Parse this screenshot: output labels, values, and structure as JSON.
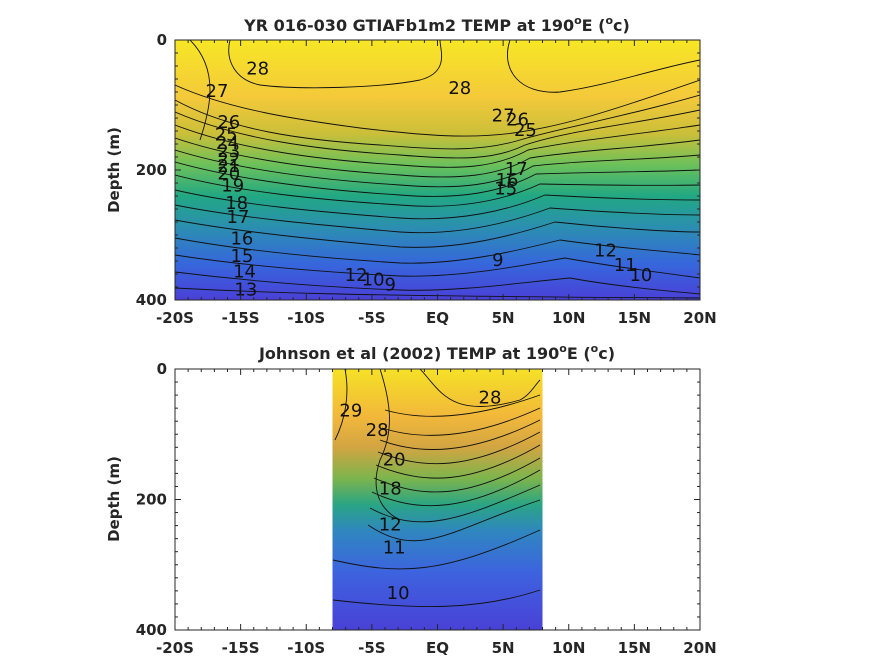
{
  "chart_data": [
    {
      "type": "heatmap",
      "title": "YR 016-030 GTIAFb1m2 TEMP at 190",
      "title_sup": "o",
      "title_mid": "E (",
      "title_sup2": "o",
      "title_end": "c)",
      "ylabel": "Depth (m)",
      "xlabel": "",
      "x_ticks": [
        "-20S",
        "-15S",
        "-10S",
        "-5S",
        "EQ",
        "5N",
        "10N",
        "15N",
        "20N"
      ],
      "x_values": [
        -20,
        -15,
        -10,
        -5,
        0,
        5,
        10,
        15,
        20
      ],
      "y_ticks": [
        "0",
        "200",
        "400"
      ],
      "y_values": [
        0,
        200,
        400
      ],
      "xlim": [
        -20,
        20
      ],
      "ylim": [
        400,
        0
      ],
      "data_extent": [
        -20,
        20
      ],
      "colormap": [
        "#f4e826",
        "#f8c23a",
        "#e9b33c",
        "#a9c23e",
        "#3fbc73",
        "#1fa187",
        "#2a7fb8",
        "#3a5fe0",
        "#4a3fd8"
      ],
      "contour_labels": [
        {
          "text": "28",
          "x": -13.7,
          "y": 45
        },
        {
          "text": "27",
          "x": -16.8,
          "y": 80
        },
        {
          "text": "26",
          "x": -15.9,
          "y": 128
        },
        {
          "text": "25",
          "x": -16.1,
          "y": 147
        },
        {
          "text": "24",
          "x": -16.0,
          "y": 160
        },
        {
          "text": "23",
          "x": -15.9,
          "y": 172
        },
        {
          "text": "22",
          "x": -15.9,
          "y": 185
        },
        {
          "text": "21",
          "x": -15.9,
          "y": 195
        },
        {
          "text": "20",
          "x": -15.9,
          "y": 207
        },
        {
          "text": "19",
          "x": -15.6,
          "y": 225
        },
        {
          "text": "18",
          "x": -15.3,
          "y": 252
        },
        {
          "text": "17",
          "x": -15.2,
          "y": 274
        },
        {
          "text": "16",
          "x": -14.9,
          "y": 307
        },
        {
          "text": "15",
          "x": -14.9,
          "y": 334
        },
        {
          "text": "14",
          "x": -14.7,
          "y": 358
        },
        {
          "text": "13",
          "x": -14.6,
          "y": 385
        },
        {
          "text": "28",
          "x": 1.7,
          "y": 75
        },
        {
          "text": "27",
          "x": 5.0,
          "y": 118
        },
        {
          "text": "26",
          "x": 6.1,
          "y": 124
        },
        {
          "text": "25",
          "x": 6.7,
          "y": 140
        },
        {
          "text": "17",
          "x": 6.0,
          "y": 200
        },
        {
          "text": "16",
          "x": 5.3,
          "y": 217
        },
        {
          "text": "15",
          "x": 5.2,
          "y": 230
        },
        {
          "text": "9",
          "x": 4.6,
          "y": 340
        },
        {
          "text": "12",
          "x": 12.8,
          "y": 325
        },
        {
          "text": "11",
          "x": 14.3,
          "y": 348
        },
        {
          "text": "10",
          "x": 15.5,
          "y": 363
        },
        {
          "text": "12",
          "x": -6.2,
          "y": 363
        },
        {
          "text": "10",
          "x": -4.9,
          "y": 370
        },
        {
          "text": "9",
          "x": -3.6,
          "y": 378
        }
      ]
    },
    {
      "type": "heatmap",
      "title": "Johnson et al (2002) TEMP at 190",
      "title_sup": "o",
      "title_mid": "E (",
      "title_sup2": "o",
      "title_end": "c)",
      "ylabel": "Depth (m)",
      "xlabel": "",
      "x_ticks": [
        "-20S",
        "-15S",
        "-10S",
        "-5S",
        "EQ",
        "5N",
        "10N",
        "15N",
        "20N"
      ],
      "x_values": [
        -20,
        -15,
        -10,
        -5,
        0,
        5,
        10,
        15,
        20
      ],
      "y_ticks": [
        "0",
        "200",
        "400"
      ],
      "y_values": [
        0,
        200,
        400
      ],
      "xlim": [
        -20,
        20
      ],
      "ylim": [
        400,
        0
      ],
      "data_extent": [
        -8,
        8
      ],
      "colormap": [
        "#f4e826",
        "#f8c23a",
        "#e9b33c",
        "#a9c23e",
        "#3fbc73",
        "#1fa187",
        "#2a7fb8",
        "#3a5fe0",
        "#4a3fd8"
      ],
      "contour_labels": [
        {
          "text": "29",
          "x": -6.6,
          "y": 65
        },
        {
          "text": "28",
          "x": -4.6,
          "y": 95
        },
        {
          "text": "28",
          "x": 4.0,
          "y": 45
        },
        {
          "text": "20",
          "x": -3.3,
          "y": 140
        },
        {
          "text": "18",
          "x": -3.6,
          "y": 185
        },
        {
          "text": "12",
          "x": -3.6,
          "y": 240
        },
        {
          "text": "11",
          "x": -3.3,
          "y": 275
        },
        {
          "text": "10",
          "x": -3.0,
          "y": 345
        }
      ]
    }
  ]
}
